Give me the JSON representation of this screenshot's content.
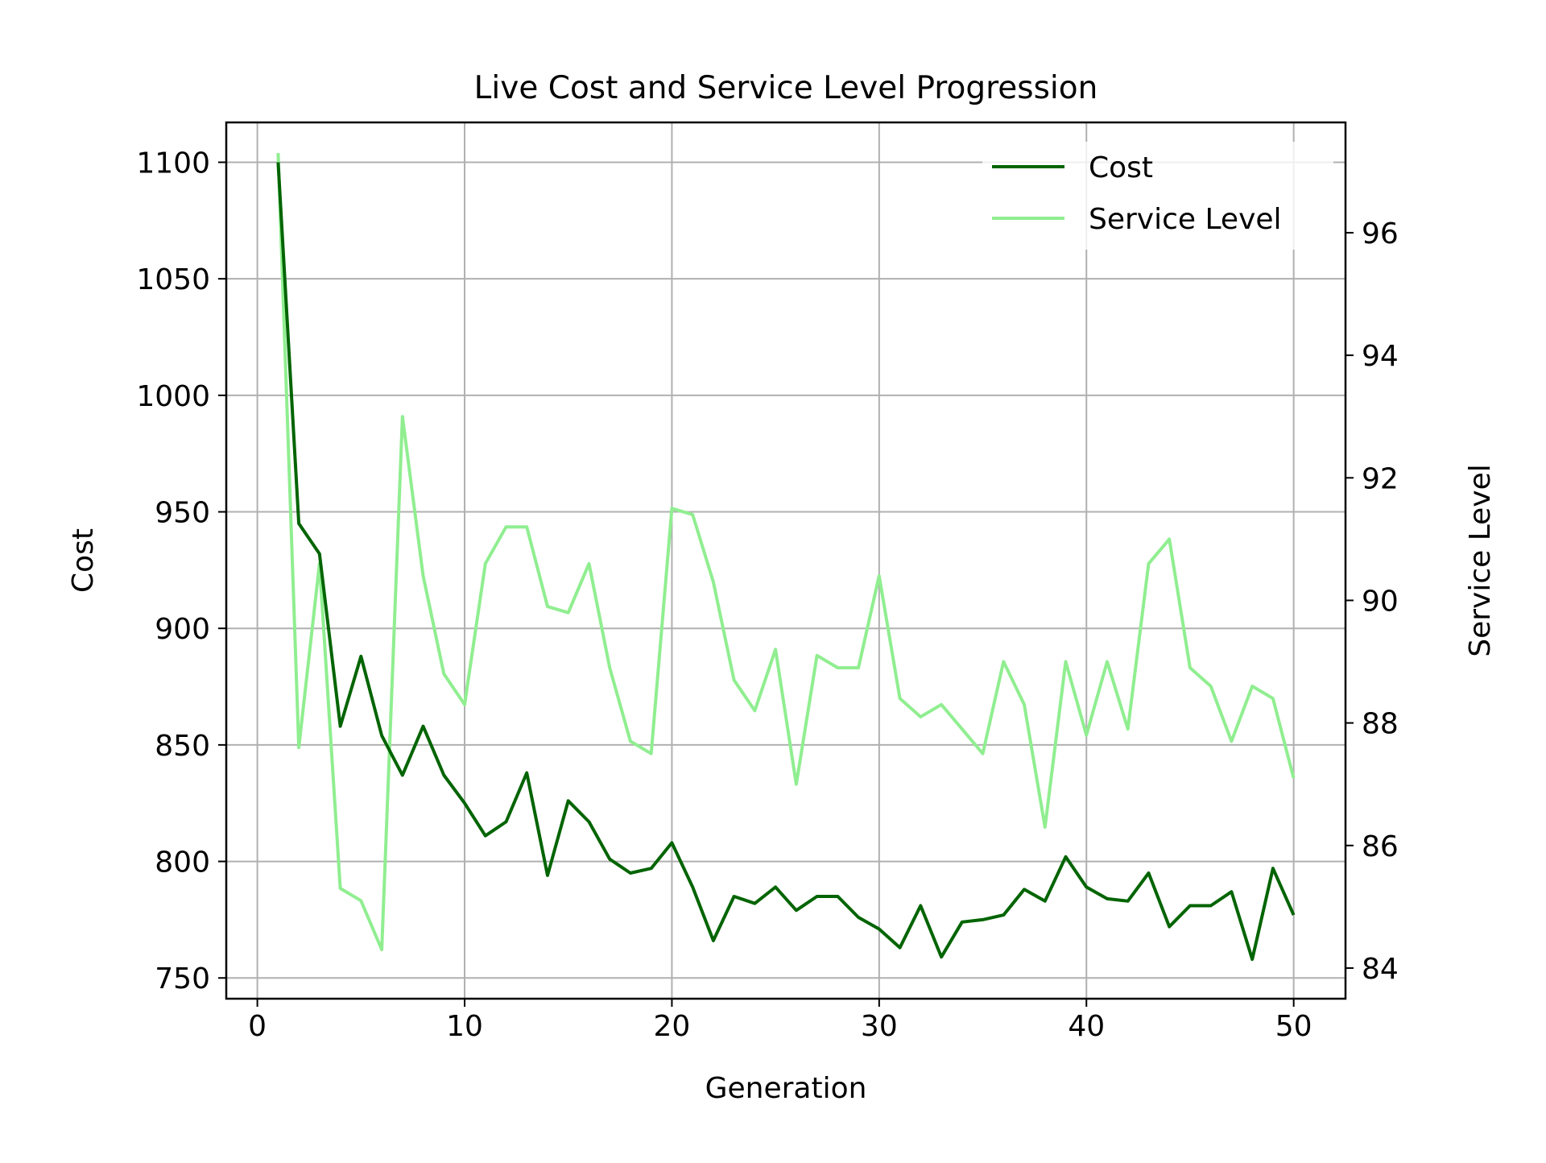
{
  "chart_data": {
    "type": "line",
    "title": "Live Cost and Service Level Progression",
    "xlabel": "Generation",
    "ylabel_left": "Cost",
    "ylabel_right": "Service Level",
    "xlim": [
      -1.5,
      52.5
    ],
    "ylim_left": [
      741.1,
      1117.1
    ],
    "ylim_right": [
      83.5,
      97.8
    ],
    "x_ticks": [
      0,
      10,
      20,
      30,
      40,
      50
    ],
    "y_left_ticks": [
      750,
      800,
      850,
      900,
      950,
      1000,
      1050,
      1100
    ],
    "y_right_ticks": [
      84,
      86,
      88,
      90,
      92,
      94,
      96
    ],
    "grid": true,
    "legend_position": "top-right",
    "x": [
      1,
      2,
      3,
      4,
      5,
      6,
      7,
      8,
      9,
      10,
      11,
      12,
      13,
      14,
      15,
      16,
      17,
      18,
      19,
      20,
      21,
      22,
      23,
      24,
      25,
      26,
      27,
      28,
      29,
      30,
      31,
      32,
      33,
      34,
      35,
      36,
      37,
      38,
      39,
      40,
      41,
      42,
      43,
      44,
      45,
      46,
      47,
      48,
      49,
      50
    ],
    "series": [
      {
        "name": "Cost",
        "axis": "left",
        "color": "#006400",
        "values": [
          1100,
          945,
          932,
          858,
          888,
          854,
          837,
          858,
          837,
          825,
          811,
          817,
          838,
          794,
          826,
          817,
          801,
          795,
          797,
          808,
          789,
          766,
          785,
          782,
          789,
          779,
          785,
          785,
          776,
          771,
          763,
          781,
          759,
          774,
          775,
          777,
          788,
          783,
          802,
          789,
          784,
          783,
          795,
          772,
          781,
          781,
          787,
          758,
          797,
          777
        ]
      },
      {
        "name": "Service Level",
        "axis": "right",
        "color": "#90EE90",
        "values": [
          97.3,
          87.6,
          90.6,
          85.3,
          85.1,
          84.3,
          93.0,
          90.4,
          88.8,
          88.3,
          90.6,
          91.2,
          91.2,
          89.9,
          89.8,
          90.6,
          88.9,
          87.7,
          87.5,
          91.5,
          91.4,
          90.3,
          88.7,
          88.2,
          89.2,
          87.0,
          89.1,
          88.9,
          88.9,
          90.4,
          88.4,
          88.1,
          88.3,
          87.9,
          87.5,
          89.0,
          88.3,
          86.3,
          89.0,
          87.8,
          89.0,
          87.9,
          90.6,
          91.0,
          88.9,
          88.6,
          87.7,
          88.6,
          88.4,
          87.1
        ]
      }
    ]
  }
}
